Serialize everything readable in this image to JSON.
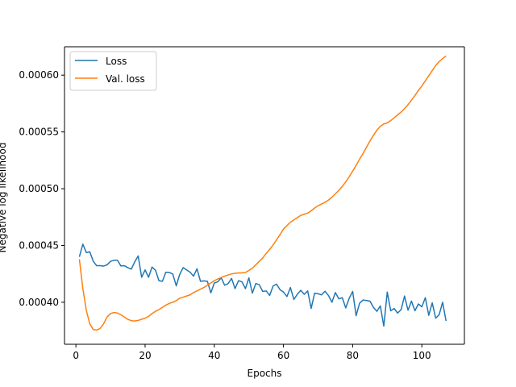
{
  "chart_data": {
    "type": "line",
    "title": "",
    "xlabel": "Epochs",
    "ylabel": "Negative log likelihood",
    "xlim": [
      -3.3,
      112.3
    ],
    "ylim": [
      0.000363,
      0.000625
    ],
    "xticks": [
      0,
      20,
      40,
      60,
      80,
      100
    ],
    "xtick_labels": [
      "0",
      "20",
      "40",
      "60",
      "80",
      "100"
    ],
    "yticks": [
      0.0004,
      0.00045,
      0.0005,
      0.00055,
      0.0006
    ],
    "ytick_labels": [
      "0.00040",
      "0.00045",
      "0.00050",
      "0.00055",
      "0.00060"
    ],
    "grid": false,
    "legend_position": "upper-left",
    "series": [
      {
        "name": "Loss",
        "color": "#1f77b4",
        "x": [
          1,
          2,
          3,
          4,
          5,
          6,
          7,
          8,
          9,
          10,
          11,
          12,
          13,
          14,
          15,
          16,
          17,
          18,
          19,
          20,
          21,
          22,
          23,
          24,
          25,
          26,
          27,
          28,
          29,
          30,
          31,
          32,
          33,
          34,
          35,
          36,
          37,
          38,
          39,
          40,
          41,
          42,
          43,
          44,
          45,
          46,
          47,
          48,
          49,
          50,
          51,
          52,
          53,
          54,
          55,
          56,
          57,
          58,
          59,
          60,
          61,
          62,
          63,
          64,
          65,
          66,
          67,
          68,
          69,
          70,
          71,
          72,
          73,
          74,
          75,
          76,
          77,
          78,
          79,
          80,
          81,
          82,
          83,
          84,
          85,
          86,
          87,
          88,
          89,
          90,
          91,
          92,
          93,
          94,
          95,
          96,
          97,
          98,
          99,
          100,
          101,
          102,
          103,
          104,
          105,
          106,
          107
        ],
        "y": [
          0.00044,
          0.0004512,
          0.0004437,
          0.0004445,
          0.0004362,
          0.0004322,
          0.0004322,
          0.0004318,
          0.000433,
          0.000436,
          0.000437,
          0.000437,
          0.000432,
          0.0004322,
          0.0004305,
          0.0004292,
          0.0004355,
          0.0004408,
          0.000422,
          0.0004285,
          0.000422,
          0.000431,
          0.0004282,
          0.000419,
          0.0004185,
          0.0004265,
          0.0004262,
          0.0004248,
          0.0004145,
          0.0004245,
          0.0004305,
          0.0004285,
          0.0004265,
          0.000423,
          0.0004295,
          0.0004185,
          0.0004188,
          0.0004185,
          0.0004083,
          0.000417,
          0.000418,
          0.0004215,
          0.000415,
          0.0004165,
          0.000421,
          0.000412,
          0.000419,
          0.000418,
          0.000412,
          0.0004215,
          0.000408,
          0.0004165,
          0.0004155,
          0.0004095,
          0.00041,
          0.000406,
          0.0004143,
          0.000416,
          0.000411,
          0.000409,
          0.000405,
          0.000413,
          0.0004025,
          0.000407,
          0.0004105,
          0.000407,
          0.00041,
          0.0003945,
          0.000408,
          0.0004075,
          0.0004065,
          0.0004097,
          0.000406,
          0.0004,
          0.0004085,
          0.000403,
          0.000404,
          0.000395,
          0.0004035,
          0.0004095,
          0.0003882,
          0.0003992,
          0.000402,
          0.0004015,
          0.000401,
          0.0003955,
          0.000392,
          0.0003968,
          0.000379,
          0.000409,
          0.0003925,
          0.0003945,
          0.0003905,
          0.0003935,
          0.0004055,
          0.000393,
          0.000401,
          0.0003925,
          0.0003985,
          0.000396,
          0.000404,
          0.0003885,
          0.0003995,
          0.000386,
          0.000389,
          0.0004,
          0.0003835
        ]
      },
      {
        "name": "Val. loss",
        "color": "#ff7f0e",
        "x": [
          1,
          2,
          3,
          4,
          5,
          6,
          7,
          8,
          9,
          10,
          11,
          12,
          13,
          14,
          15,
          16,
          17,
          18,
          19,
          20,
          21,
          22,
          23,
          24,
          25,
          26,
          27,
          28,
          29,
          30,
          31,
          32,
          33,
          34,
          35,
          36,
          37,
          38,
          39,
          40,
          41,
          42,
          43,
          44,
          45,
          46,
          47,
          48,
          49,
          50,
          51,
          52,
          53,
          54,
          55,
          56,
          57,
          58,
          59,
          60,
          61,
          62,
          63,
          64,
          65,
          66,
          67,
          68,
          69,
          70,
          71,
          72,
          73,
          74,
          75,
          76,
          77,
          78,
          79,
          80,
          81,
          82,
          83,
          84,
          85,
          86,
          87,
          88,
          89,
          90,
          91,
          92,
          93,
          94,
          95,
          96,
          97,
          98,
          99,
          100,
          101,
          102,
          103,
          104,
          105,
          106,
          107
        ],
        "y": [
          0.000438,
          0.000412,
          0.000393,
          0.000381,
          0.000376,
          0.0003755,
          0.000377,
          0.000381,
          0.000387,
          0.00039,
          0.000391,
          0.0003905,
          0.000389,
          0.000387,
          0.000385,
          0.0003838,
          0.0003835,
          0.000384,
          0.000385,
          0.000386,
          0.0003875,
          0.00039,
          0.000392,
          0.0003935,
          0.0003955,
          0.0003975,
          0.000399,
          0.0004,
          0.0004015,
          0.0004035,
          0.0004045,
          0.0004055,
          0.0004065,
          0.0004085,
          0.00041,
          0.0004115,
          0.000413,
          0.000415,
          0.000417,
          0.000419,
          0.0004205,
          0.0004218,
          0.000423,
          0.000424,
          0.000425,
          0.0004255,
          0.0004258,
          0.0004258,
          0.0004262,
          0.000428,
          0.00043,
          0.000433,
          0.000436,
          0.000439,
          0.000443,
          0.0004465,
          0.0004505,
          0.000455,
          0.0004595,
          0.0004645,
          0.0004675,
          0.0004705,
          0.0004725,
          0.0004745,
          0.0004765,
          0.0004775,
          0.0004785,
          0.0004805,
          0.000483,
          0.000485,
          0.0004865,
          0.000488,
          0.00049,
          0.0004925,
          0.0004955,
          0.0004985,
          0.000502,
          0.000506,
          0.0005105,
          0.0005155,
          0.0005205,
          0.000526,
          0.000531,
          0.0005365,
          0.000542,
          0.000547,
          0.0005515,
          0.000555,
          0.000557,
          0.000558,
          0.00056,
          0.0005625,
          0.000565,
          0.0005675,
          0.0005705,
          0.000574,
          0.000578,
          0.000582,
          0.0005865,
          0.0005905,
          0.000595,
          0.0005995,
          0.000604,
          0.0006085,
          0.000612,
          0.0006145,
          0.000617
        ]
      }
    ]
  }
}
